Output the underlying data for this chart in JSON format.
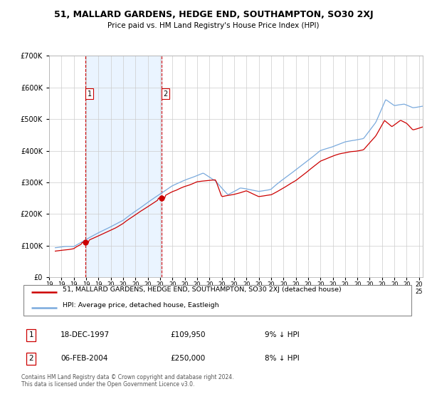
{
  "title": "51, MALLARD GARDENS, HEDGE END, SOUTHAMPTON, SO30 2XJ",
  "subtitle": "Price paid vs. HM Land Registry's House Price Index (HPI)",
  "sale1_date": "18-DEC-1997",
  "sale1_price": 109950,
  "sale1_label": "1",
  "sale1_year": 1997.96,
  "sale2_date": "06-FEB-2004",
  "sale2_price": 250000,
  "sale2_label": "2",
  "sale2_year": 2004.1,
  "legend_property": "51, MALLARD GARDENS, HEDGE END, SOUTHAMPTON, SO30 2XJ (detached house)",
  "legend_hpi": "HPI: Average price, detached house, Eastleigh",
  "table_row1": [
    "1",
    "18-DEC-1997",
    "£109,950",
    "9% ↓ HPI"
  ],
  "table_row2": [
    "2",
    "06-FEB-2004",
    "£250,000",
    "8% ↓ HPI"
  ],
  "footer": "Contains HM Land Registry data © Crown copyright and database right 2024.\nThis data is licensed under the Open Government Licence v3.0.",
  "color_property": "#cc0000",
  "color_hpi": "#7aaadd",
  "color_shade": "#ddeeff",
  "color_dashed": "#cc0000",
  "ylim_max": 700000,
  "xlim_start": 1995.5,
  "xlim_end": 2025.3
}
